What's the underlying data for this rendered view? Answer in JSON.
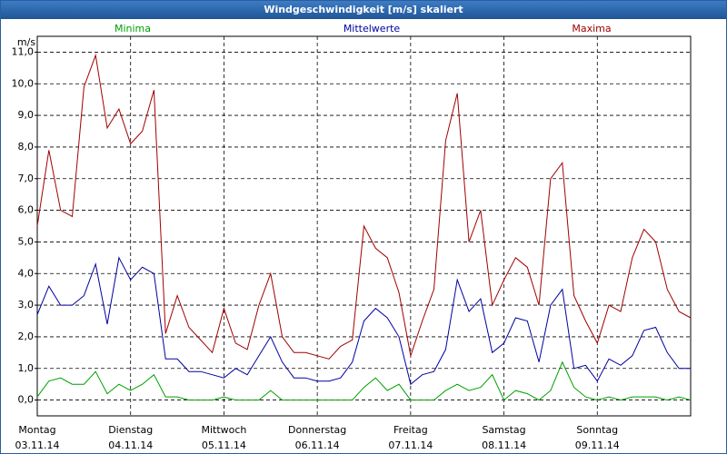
{
  "chart_data": {
    "type": "line",
    "title": "Windgeschwindigkeit [m/s] skaliert",
    "y_unit": "m/s",
    "days": [
      {
        "weekday": "Montag",
        "date": "03.11.14"
      },
      {
        "weekday": "Dienstag",
        "date": "04.11.14"
      },
      {
        "weekday": "Mittwoch",
        "date": "05.11.14"
      },
      {
        "weekday": "Donnerstag",
        "date": "06.11.14"
      },
      {
        "weekday": "Freitag",
        "date": "07.11.14"
      },
      {
        "weekday": "Samstag",
        "date": "08.11.14"
      },
      {
        "weekday": "Sonntag",
        "date": "09.11.14"
      }
    ],
    "points_per_day": 8,
    "ylim": [
      -0.5,
      11.5
    ],
    "yticks": [
      {
        "value": 0,
        "label": "0,0"
      },
      {
        "value": 1,
        "label": "1,0"
      },
      {
        "value": 2,
        "label": "2,0"
      },
      {
        "value": 3,
        "label": "3,0"
      },
      {
        "value": 4,
        "label": "4,0"
      },
      {
        "value": 5,
        "label": "5,0"
      },
      {
        "value": 6,
        "label": "6,0"
      },
      {
        "value": 7,
        "label": "7,0"
      },
      {
        "value": 8,
        "label": "8,0"
      },
      {
        "value": 9,
        "label": "9,0"
      },
      {
        "value": 10,
        "label": "10,0"
      },
      {
        "value": 11,
        "label": "11,0"
      }
    ],
    "grid": true,
    "series": [
      {
        "name": "Minima",
        "color": "#00a000",
        "values": [
          0.1,
          0.6,
          0.7,
          0.5,
          0.5,
          0.9,
          0.2,
          0.5,
          0.3,
          0.5,
          0.8,
          0.1,
          0.1,
          0,
          0,
          0,
          0.1,
          0,
          0,
          0,
          0.3,
          0,
          0,
          0,
          0,
          0,
          0,
          0,
          0.4,
          0.7,
          0.3,
          0.5,
          0,
          0,
          0,
          0.3,
          0.5,
          0.3,
          0.4,
          0.8,
          0,
          0.3,
          0.2,
          0,
          0.3,
          1.2,
          0.4,
          0.1,
          0,
          0.1,
          0,
          0.1,
          0.1,
          0.1,
          0,
          0.1,
          0
        ]
      },
      {
        "name": "Mittelwerte",
        "color": "#0000a0",
        "values": [
          2.7,
          3.6,
          3.0,
          3.0,
          3.3,
          4.3,
          2.4,
          4.5,
          3.8,
          4.2,
          4.0,
          1.3,
          1.3,
          0.9,
          0.9,
          0.8,
          0.7,
          1.0,
          0.8,
          1.4,
          2.0,
          1.2,
          0.7,
          0.7,
          0.6,
          0.6,
          0.7,
          1.2,
          2.5,
          2.9,
          2.6,
          2.0,
          0.5,
          0.8,
          0.9,
          1.6,
          3.8,
          2.8,
          3.2,
          1.5,
          1.8,
          2.6,
          2.5,
          1.2,
          3.0,
          3.5,
          1.0,
          1.1,
          0.6,
          1.3,
          1.1,
          1.4,
          2.2,
          2.3,
          1.5,
          1.0,
          1.0
        ]
      },
      {
        "name": "Maxima",
        "color": "#a00000",
        "values": [
          5.5,
          7.9,
          6.0,
          5.8,
          9.9,
          10.9,
          8.6,
          9.2,
          8.1,
          8.5,
          9.8,
          2.1,
          3.3,
          2.3,
          1.9,
          1.5,
          2.9,
          1.8,
          1.6,
          3.0,
          4.0,
          2.0,
          1.5,
          1.5,
          1.4,
          1.3,
          1.7,
          1.9,
          5.5,
          4.8,
          4.5,
          3.4,
          1.4,
          2.5,
          3.5,
          8.2,
          9.7,
          5.0,
          6.0,
          3.0,
          3.8,
          4.5,
          4.2,
          3.0,
          7.0,
          7.5,
          3.3,
          2.5,
          1.8,
          3.0,
          2.8,
          4.5,
          5.4,
          5.0,
          3.5,
          2.8,
          2.6
        ]
      }
    ]
  }
}
